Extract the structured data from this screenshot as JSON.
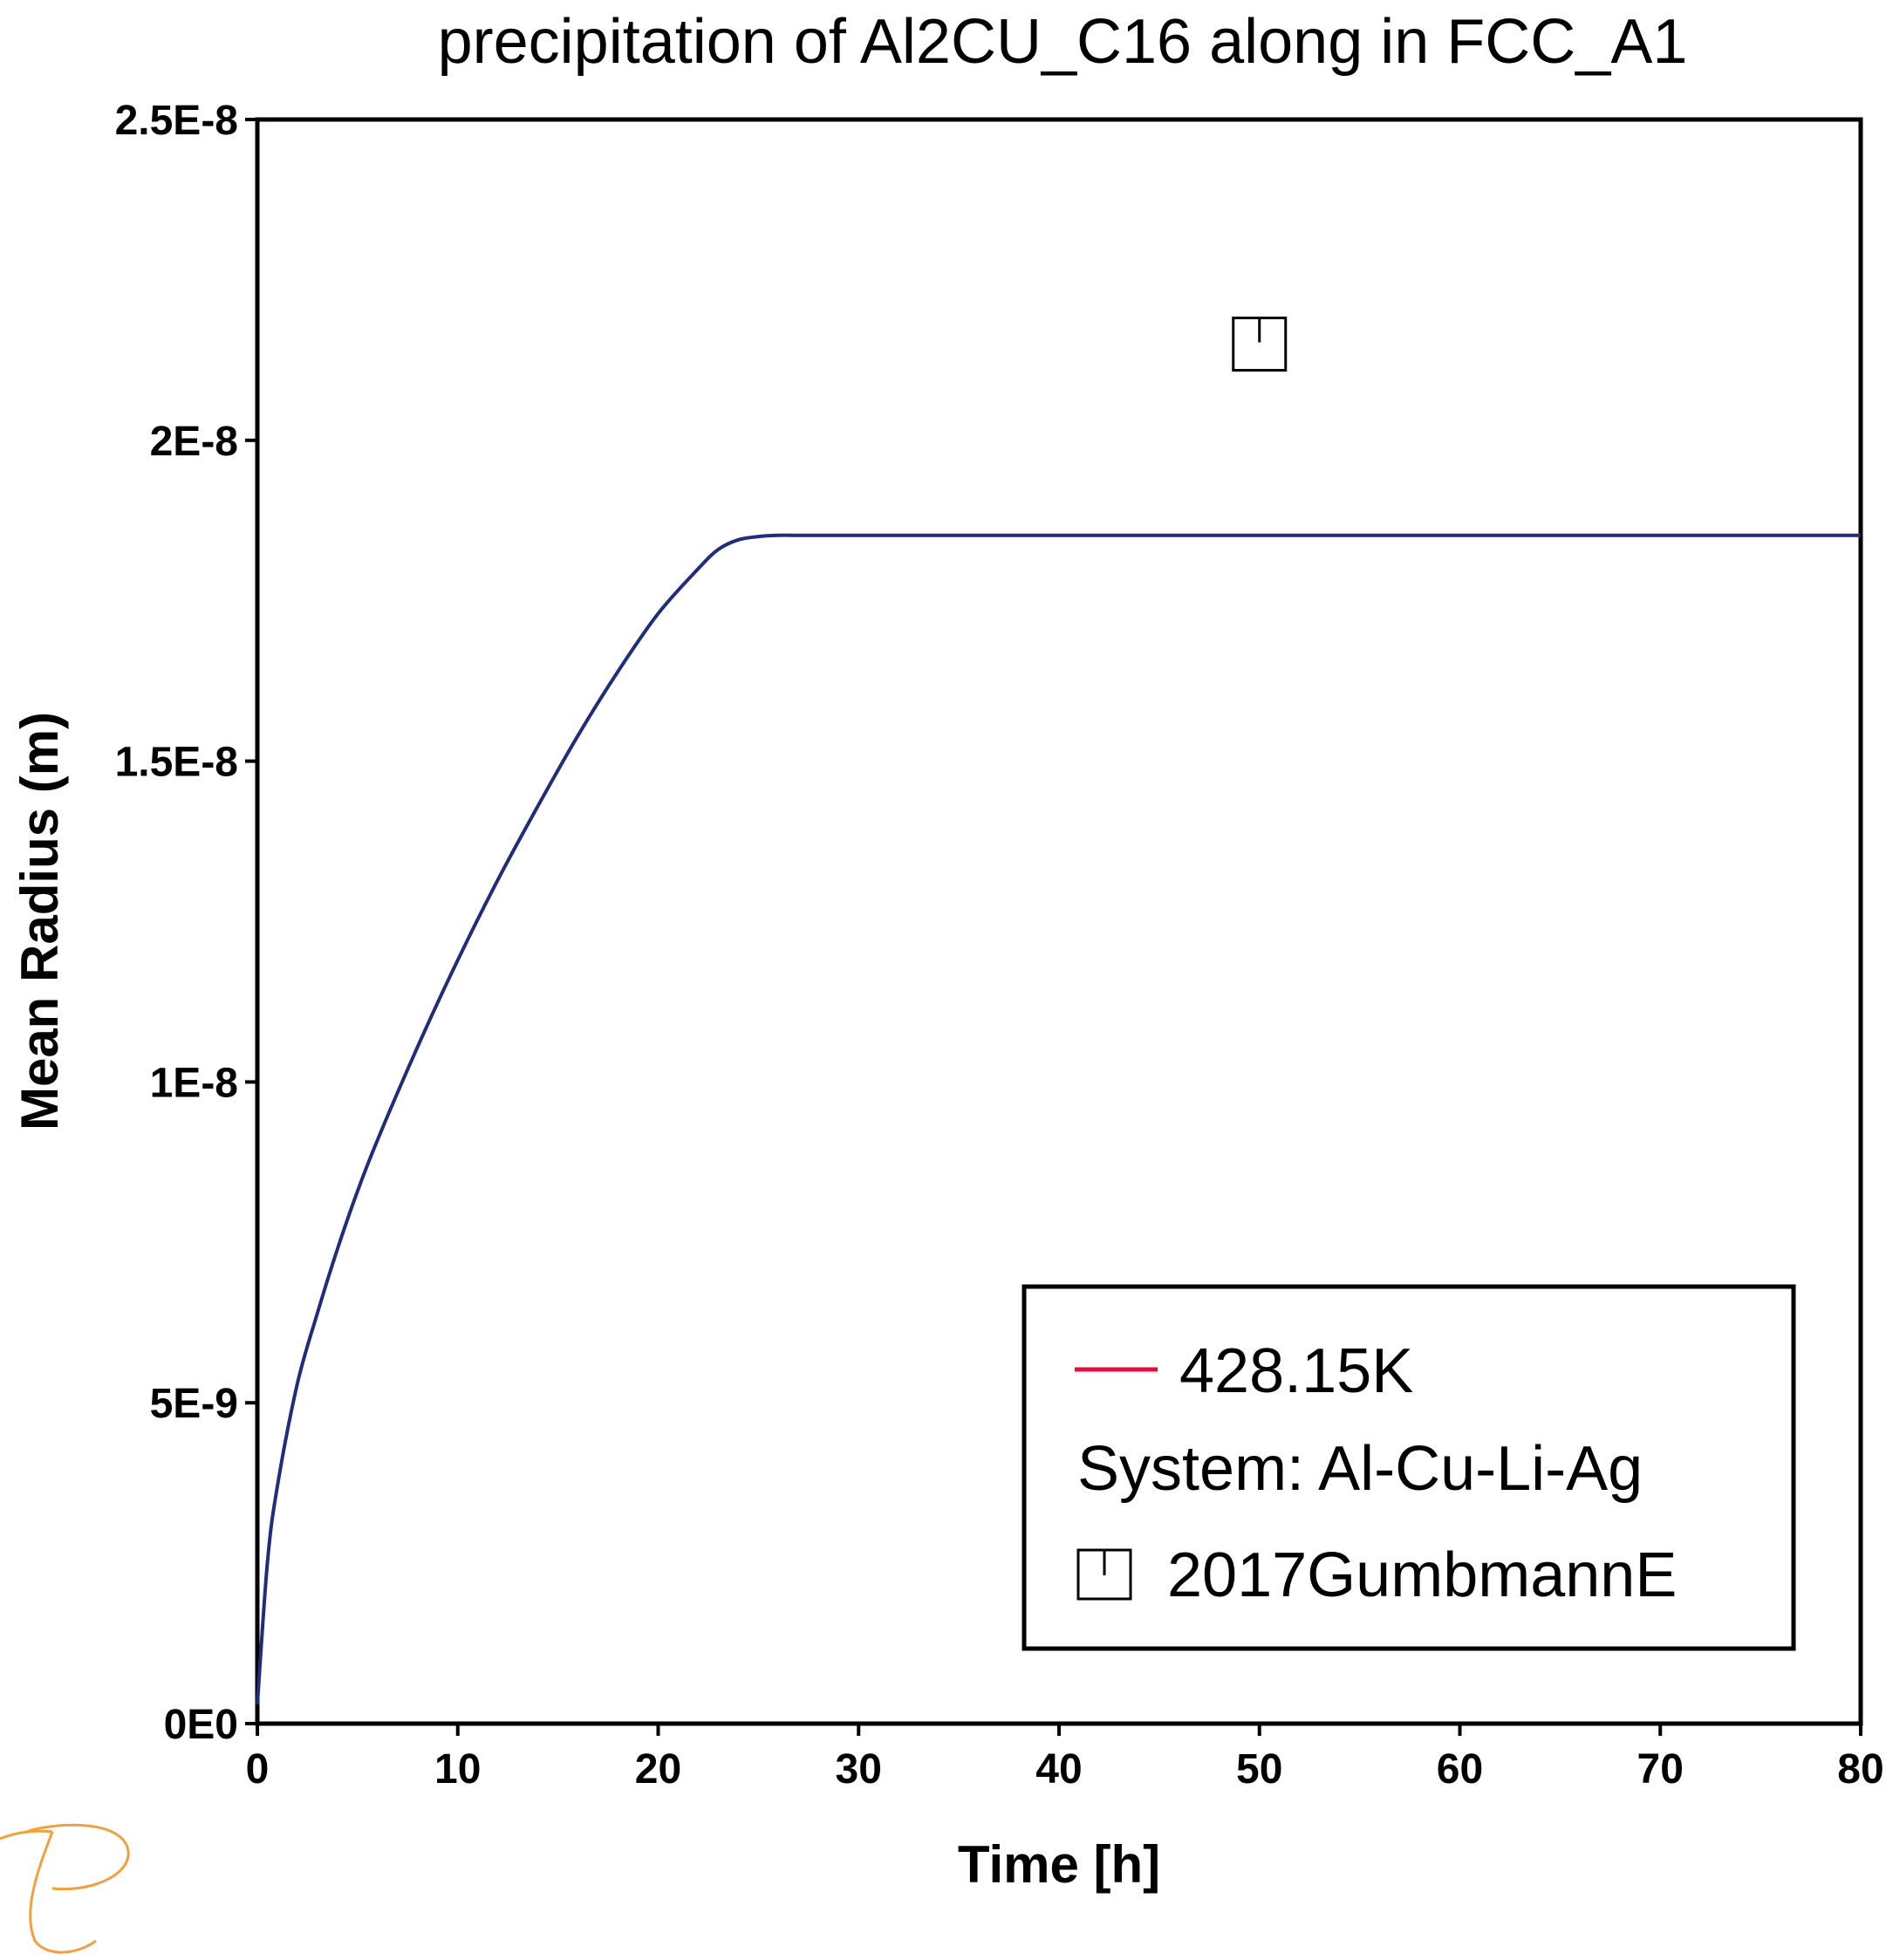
{
  "chart_data": {
    "type": "line",
    "title": "precipitation of Al2CU_C16 along in FCC_A1",
    "xlabel": "Time [h]",
    "ylabel": "Mean Radius (m)",
    "xlim": [
      0,
      80
    ],
    "ylim": [
      0,
      2.5e-08
    ],
    "x_ticks": [
      0,
      10,
      20,
      30,
      40,
      50,
      60,
      70,
      80
    ],
    "x_tick_labels": [
      "0",
      "10",
      "20",
      "30",
      "40",
      "50",
      "60",
      "70",
      "80"
    ],
    "y_ticks": [
      0,
      5e-09,
      1e-08,
      1.5e-08,
      2e-08,
      2.5e-08
    ],
    "y_tick_labels": [
      "0E0",
      "5E-9",
      "1E-8",
      "1.5E-8",
      "2E-8",
      "2.5E-8"
    ],
    "grid": false,
    "legend_position": "bottom-right",
    "series": [
      {
        "name": "428.15K",
        "color": "#1f2d7a",
        "legend_color": "#e0103a",
        "x": [
          0,
          0.5,
          1,
          2,
          3,
          4,
          5,
          6,
          8,
          10,
          12,
          14,
          16,
          18,
          20,
          22,
          23,
          24,
          25,
          26,
          27,
          30,
          40,
          50,
          60,
          70,
          80
        ],
        "y": [
          3e-10,
          2.5e-09,
          3.7e-09,
          5.3e-09,
          6.4e-09,
          7.4e-09,
          8.3e-09,
          9.1e-09,
          1.055e-08,
          1.19e-08,
          1.315e-08,
          1.43e-08,
          1.54e-08,
          1.64e-08,
          1.73e-08,
          1.8e-08,
          1.83e-08,
          1.845e-08,
          1.85e-08,
          1.852e-08,
          1.852e-08,
          1.852e-08,
          1.852e-08,
          1.852e-08,
          1.852e-08,
          1.852e-08,
          1.852e-08
        ]
      }
    ],
    "experimental": {
      "name": "2017GumbmannE",
      "marker": "open-square-with-tick",
      "points": [
        {
          "x": 50,
          "y": 2.15e-08
        }
      ]
    },
    "legend_entries": {
      "series_label": "428.15K",
      "system_label": "System: Al-Cu-Li-Ag",
      "experimental_label": "2017GumbmannE"
    },
    "logo_icon": "thermo-calc-logo-icon",
    "logo_color": "#f0a040"
  }
}
